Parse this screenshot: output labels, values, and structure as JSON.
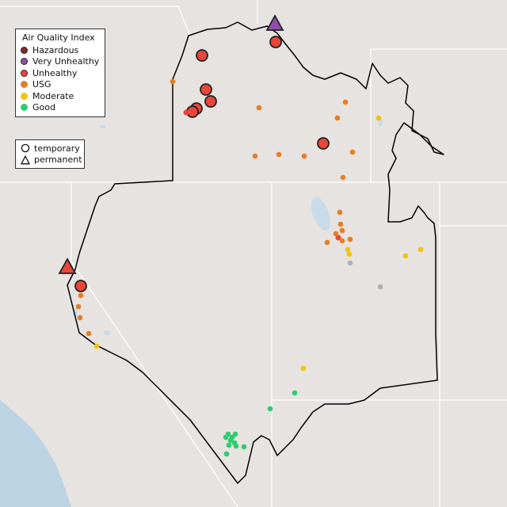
{
  "legend": {
    "title": "Air Quality Index",
    "categories": [
      {
        "label": "Hazardous",
        "color": "#7e2e30"
      },
      {
        "label": "Very Unhealthy",
        "color": "#8f4fa9"
      },
      {
        "label": "Unhealthy",
        "color": "#e8473a"
      },
      {
        "label": "USG",
        "color": "#e67e22"
      },
      {
        "label": "Moderate",
        "color": "#f1c40f"
      },
      {
        "label": "Good",
        "color": "#2ecc71"
      }
    ]
  },
  "type_legend": {
    "items": [
      {
        "label": "temporary",
        "icon": "circle-icon"
      },
      {
        "label": "permanent",
        "icon": "triangle-icon"
      }
    ]
  },
  "colors": {
    "background": "#e6e3e0",
    "state_lines": "#ffffff",
    "region_outline": "#000000",
    "water": "#bcd3e3",
    "no_data": "#b0b0b0"
  }
}
